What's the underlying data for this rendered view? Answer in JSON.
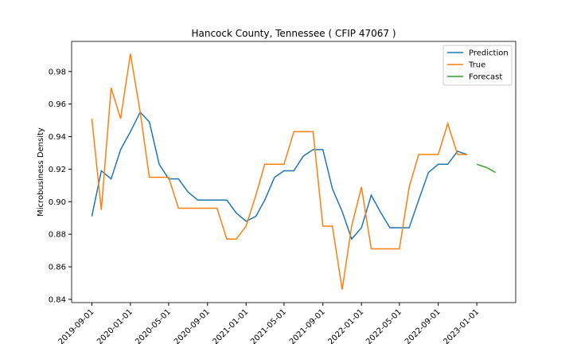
{
  "chart_data": {
    "type": "line",
    "title": "Hancock County, Tennessee ( CFIP 47067 )",
    "y_label": "Microbusiness Density",
    "x": [
      "2019-09-01",
      "2019-10-01",
      "2019-11-01",
      "2019-12-01",
      "2020-01-01",
      "2020-02-01",
      "2020-03-01",
      "2020-04-01",
      "2020-05-01",
      "2020-06-01",
      "2020-07-01",
      "2020-08-01",
      "2020-09-01",
      "2020-10-01",
      "2020-11-01",
      "2020-12-01",
      "2021-01-01",
      "2021-02-01",
      "2021-03-01",
      "2021-04-01",
      "2021-05-01",
      "2021-06-01",
      "2021-07-01",
      "2021-08-01",
      "2021-09-01",
      "2021-10-01",
      "2021-11-01",
      "2021-12-01",
      "2022-01-01",
      "2022-02-01",
      "2022-03-01",
      "2022-04-01",
      "2022-05-01",
      "2022-06-01",
      "2022-07-01",
      "2022-08-01",
      "2022-09-01",
      "2022-10-01",
      "2022-11-01",
      "2022-12-01"
    ],
    "series": [
      {
        "name": "Prediction",
        "color": "#1f77b4",
        "values": [
          0.891,
          0.919,
          0.914,
          0.932,
          0.943,
          0.955,
          0.949,
          0.923,
          0.914,
          0.914,
          0.906,
          0.901,
          0.901,
          0.901,
          0.901,
          0.893,
          0.888,
          0.891,
          0.901,
          0.915,
          0.919,
          0.919,
          0.928,
          0.932,
          0.932,
          0.908,
          0.894,
          0.877,
          0.884,
          0.904,
          0.894,
          0.884,
          0.884,
          0.884,
          0.901,
          0.918,
          0.923,
          0.923,
          0.931,
          0.929
        ]
      },
      {
        "name": "True",
        "color": "#ff7f0e",
        "values": [
          0.951,
          0.895,
          0.97,
          0.951,
          0.991,
          0.955,
          0.915,
          0.915,
          0.915,
          0.896,
          0.896,
          0.896,
          0.896,
          0.896,
          0.877,
          0.877,
          0.885,
          0.904,
          0.923,
          0.923,
          0.923,
          0.943,
          0.943,
          0.943,
          0.885,
          0.885,
          0.846,
          0.885,
          0.909,
          0.871,
          0.871,
          0.871,
          0.871,
          0.909,
          0.929,
          0.929,
          0.929,
          0.948,
          0.929,
          0.929
        ]
      },
      {
        "name": "Forecast",
        "color": "#2ca02c",
        "x": [
          "2023-01-01",
          "2023-02-01",
          "2023-03-01"
        ],
        "values": [
          0.923,
          0.921,
          0.918
        ]
      }
    ],
    "xlim": [
      "2019-06-29",
      "2023-05-04"
    ],
    "xticks": [
      "2019-09-01",
      "2020-01-01",
      "2020-05-01",
      "2020-09-01",
      "2021-01-01",
      "2021-05-01",
      "2021-09-01",
      "2022-01-01",
      "2022-05-01",
      "2022-09-01",
      "2023-01-01"
    ],
    "ylim": [
      0.838,
      0.9985
    ],
    "yticks": [
      0.84,
      0.86,
      0.88,
      0.9,
      0.92,
      0.94,
      0.96,
      0.98
    ],
    "legend": "upper right"
  }
}
